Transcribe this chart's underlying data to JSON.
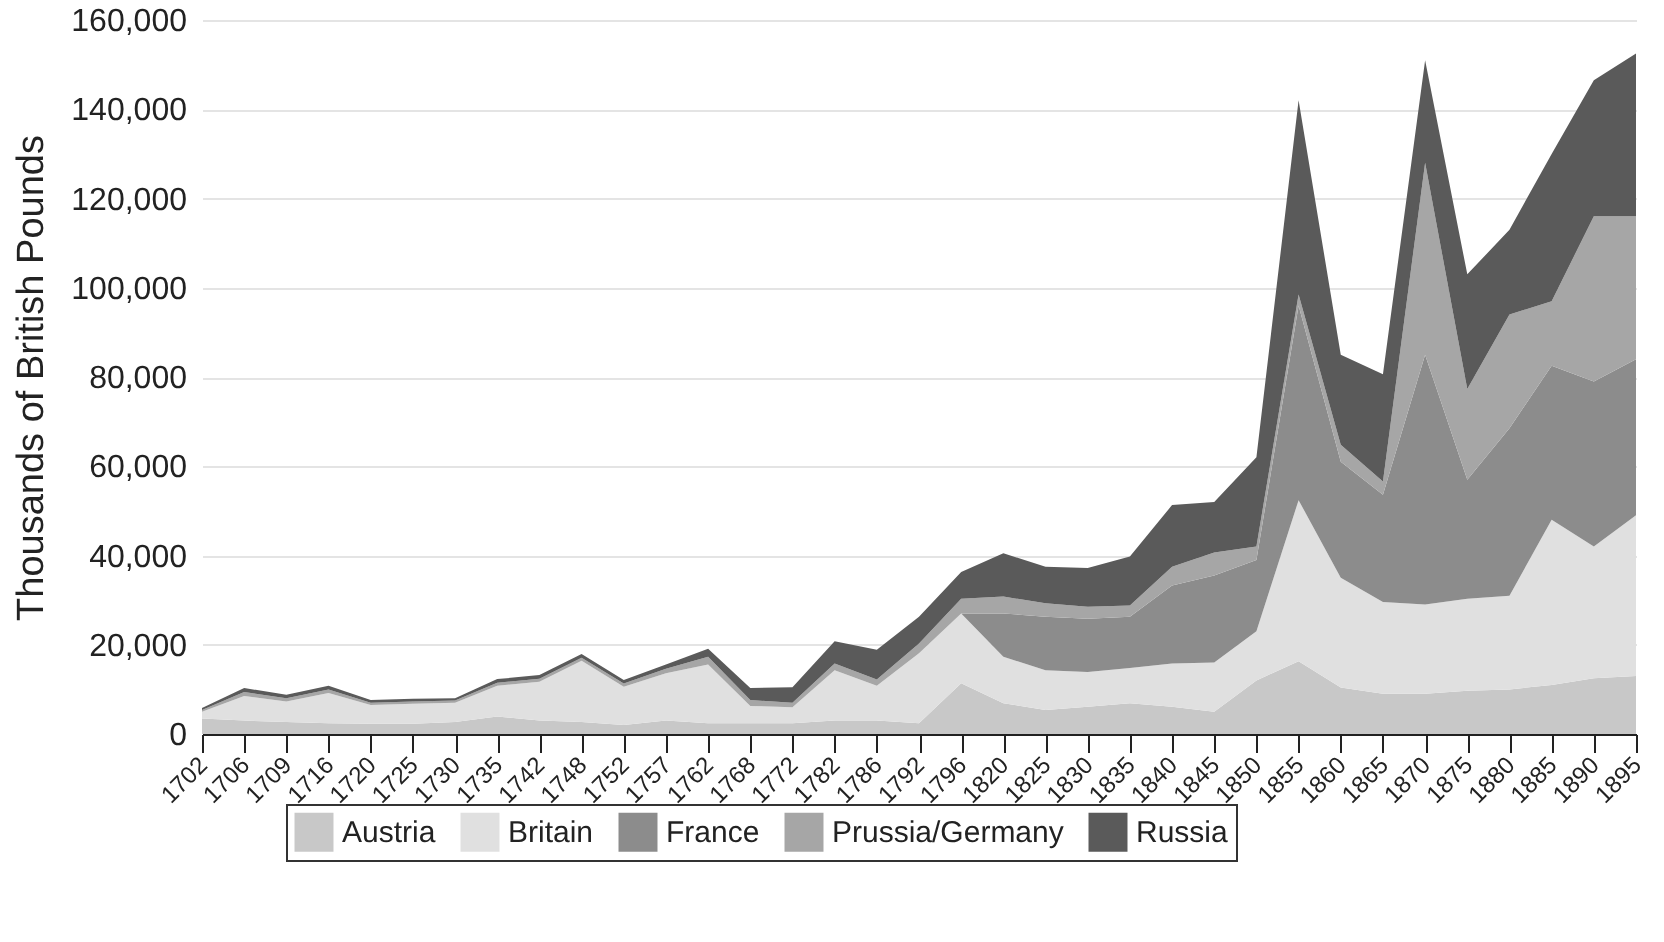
{
  "chart_data": {
    "type": "area",
    "stacked": true,
    "ylabel": "Thousands of British Pounds",
    "categories": [
      "1702",
      "1706",
      "1709",
      "1716",
      "1720",
      "1725",
      "1730",
      "1735",
      "1742",
      "1748",
      "1752",
      "1757",
      "1762",
      "1768",
      "1772",
      "1782",
      "1786",
      "1792",
      "1796",
      "1820",
      "1825",
      "1830",
      "1835",
      "1840",
      "1845",
      "1850",
      "1855",
      "1860",
      "1865",
      "1870",
      "1875",
      "1880",
      "1885",
      "1890",
      "1895"
    ],
    "series": [
      {
        "name": "Austria",
        "color": "#c8c8c8",
        "values": [
          3500,
          3000,
          2700,
          2400,
          2300,
          2300,
          2700,
          3900,
          3000,
          2700,
          2000,
          3000,
          2400,
          2400,
          2400,
          3000,
          3000,
          2400,
          11400,
          6900,
          5400,
          6100,
          6900,
          6100,
          5000,
          12000,
          16300,
          10400,
          9000,
          9000,
          9700,
          10000,
          11000,
          12500,
          13000
        ]
      },
      {
        "name": "Britain",
        "color": "#e0e0e0",
        "values": [
          1500,
          5500,
          4600,
          6800,
          4200,
          4500,
          4300,
          6900,
          8700,
          13700,
          8600,
          10600,
          13200,
          3900,
          3600,
          11300,
          7800,
          15700,
          15600,
          10400,
          8900,
          7800,
          7900,
          9700,
          11000,
          11000,
          36100,
          24600,
          20600,
          20000,
          20600,
          21000,
          37000,
          29500,
          36000
        ]
      },
      {
        "name": "France",
        "color": "#8c8c8c",
        "values": [
          0,
          0,
          0,
          0,
          0,
          0,
          0,
          0,
          0,
          0,
          0,
          0,
          0,
          0,
          0,
          0,
          0,
          0,
          0,
          9700,
          12000,
          11900,
          11500,
          17500,
          19500,
          16000,
          43600,
          26000,
          24000,
          56000,
          26700,
          37500,
          34500,
          37000,
          35000
        ]
      },
      {
        "name": "Prussia/Germany",
        "color": "#a6a6a6",
        "values": [
          400,
          900,
          700,
          800,
          500,
          500,
          500,
          700,
          700,
          700,
          700,
          1000,
          1700,
          1300,
          1000,
          1500,
          1400,
          2200,
          3300,
          3800,
          3000,
          2700,
          2500,
          4200,
          5200,
          3000,
          2500,
          3800,
          3000,
          43000,
          20300,
          25500,
          14500,
          37000,
          32000
        ]
      },
      {
        "name": "Russia",
        "color": "#5a5a5a",
        "values": [
          400,
          900,
          800,
          800,
          600,
          600,
          500,
          800,
          800,
          800,
          800,
          1000,
          1800,
          2700,
          3500,
          5000,
          6700,
          6000,
          6000,
          9700,
          8200,
          8700,
          11000,
          13800,
          11300,
          20000,
          43500,
          20200,
          24000,
          23000,
          25700,
          19000,
          33000,
          30500,
          36500
        ]
      }
    ],
    "ylim": [
      0,
      160000
    ],
    "yticks": [
      0,
      {
        "value": 20000,
        "label": "20,000"
      },
      {
        "value": 40000,
        "label": "40,000"
      },
      {
        "value": 60000,
        "label": "60,000"
      },
      {
        "value": 80000,
        "label": "80,000"
      },
      {
        "value": 100000,
        "label": "100,000"
      },
      {
        "value": 120000,
        "label": "120,000"
      },
      {
        "value": 140000,
        "label": "140,000"
      },
      {
        "value": 160000,
        "label": "160,000"
      }
    ],
    "grid": "y",
    "legend": "bottom"
  }
}
